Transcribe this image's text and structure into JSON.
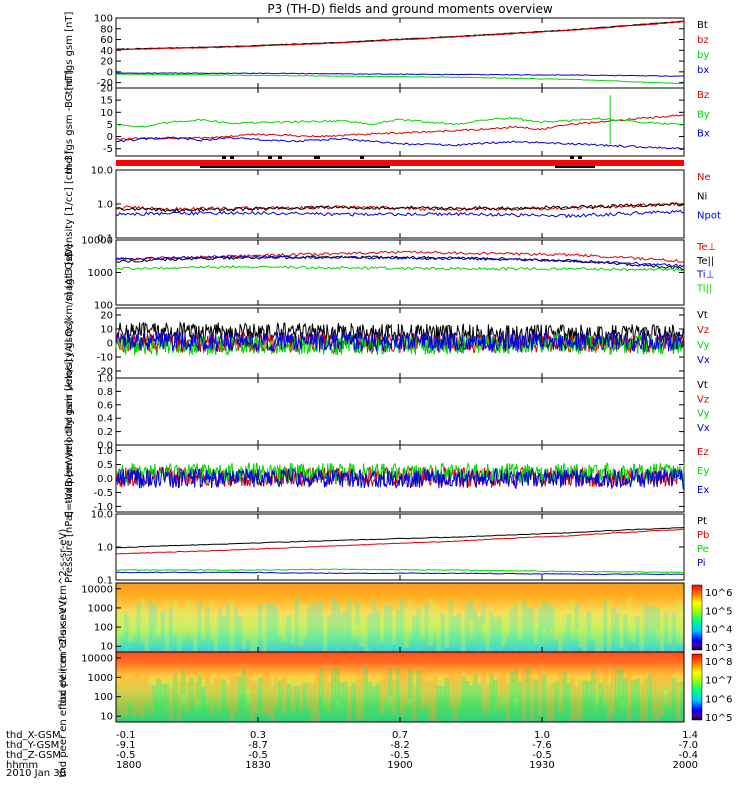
{
  "colors": {
    "black": "#000000",
    "red": "#e00000",
    "green": "#00d800",
    "blue": "#0000e0"
  },
  "chart_data": {
    "type": "line",
    "title": "P3 (TH-D) fields and ground moments overview",
    "date_label": "2010 Jan 30",
    "x_range": [
      "1800",
      "2000"
    ],
    "panels": [
      {
        "id": "fgs",
        "ylabel": "thd fgs gsm [nT]",
        "scale": "linear",
        "ylim": [
          -30,
          100
        ],
        "tick_labels": [
          "100",
          "80",
          "60",
          "40",
          "20",
          "0",
          "-20"
        ],
        "tick_values": [
          100,
          80,
          60,
          40,
          20,
          0,
          -20
        ],
        "series": [
          {
            "name": "Bt",
            "color": "black",
            "pts": [
              [
                0,
                42
              ],
              [
                0.2,
                47
              ],
              [
                0.4,
                55
              ],
              [
                0.6,
                66
              ],
              [
                0.8,
                78
              ],
              [
                1,
                94
              ]
            ]
          },
          {
            "name": "bz",
            "color": "red",
            "pts": [
              [
                0,
                41
              ],
              [
                0.2,
                46
              ],
              [
                0.4,
                54
              ],
              [
                0.6,
                65
              ],
              [
                0.8,
                77
              ],
              [
                1,
                93
              ]
            ]
          },
          {
            "name": "by",
            "color": "green",
            "pts": [
              [
                0,
                -4
              ],
              [
                0.3,
                -7
              ],
              [
                0.6,
                -10
              ],
              [
                0.8,
                -14
              ],
              [
                1,
                -22
              ]
            ]
          },
          {
            "name": "bx",
            "color": "blue",
            "pts": [
              [
                0,
                -2
              ],
              [
                0.3,
                -3
              ],
              [
                0.6,
                -5
              ],
              [
                0.8,
                -6
              ],
              [
                1,
                -8
              ]
            ]
          }
        ]
      },
      {
        "id": "fgs_dsl",
        "ylabel": "thd fgs gsm -BG [nT]",
        "scale": "linear",
        "ylim": [
          -8,
          20
        ],
        "tick_labels": [
          "20",
          "15",
          "10",
          "5",
          "0",
          "-5"
        ],
        "tick_values": [
          20,
          15,
          10,
          5,
          0,
          -5
        ],
        "series": [
          {
            "name": "Bz",
            "color": "red",
            "pts": [
              [
                0,
                -1
              ],
              [
                0.15,
                -0.5
              ],
              [
                0.2,
                0
              ],
              [
                0.25,
                1
              ],
              [
                0.35,
                0
              ],
              [
                0.45,
                1
              ],
              [
                0.55,
                2
              ],
              [
                0.65,
                3
              ],
              [
                0.7,
                4
              ],
              [
                0.75,
                3
              ],
              [
                0.8,
                5
              ],
              [
                0.85,
                6
              ],
              [
                0.9,
                7
              ],
              [
                0.95,
                8
              ],
              [
                1,
                9
              ]
            ]
          },
          {
            "name": "By",
            "color": "green",
            "pts": [
              [
                0,
                5
              ],
              [
                0.05,
                4
              ],
              [
                0.1,
                6
              ],
              [
                0.15,
                7
              ],
              [
                0.2,
                5.5
              ],
              [
                0.3,
                6
              ],
              [
                0.4,
                6.5
              ],
              [
                0.45,
                5
              ],
              [
                0.5,
                7
              ],
              [
                0.55,
                6
              ],
              [
                0.6,
                5
              ],
              [
                0.65,
                7
              ],
              [
                0.7,
                7.5
              ],
              [
                0.75,
                6
              ],
              [
                0.8,
                6.5
              ],
              [
                0.85,
                7.5
              ],
              [
                0.9,
                6.5
              ],
              [
                0.95,
                5.5
              ],
              [
                1,
                5
              ]
            ]
          },
          {
            "name": "Bx",
            "color": "blue",
            "pts": [
              [
                0,
                -2
              ],
              [
                0.05,
                -1
              ],
              [
                0.1,
                -0.5
              ],
              [
                0.15,
                -1.5
              ],
              [
                0.2,
                -0.5
              ],
              [
                0.3,
                -2
              ],
              [
                0.4,
                -1
              ],
              [
                0.5,
                -3
              ],
              [
                0.6,
                -3.5
              ],
              [
                0.7,
                -2
              ],
              [
                0.8,
                -3
              ],
              [
                0.9,
                -4
              ],
              [
                1,
                -5
              ]
            ]
          }
        ]
      },
      {
        "id": "density",
        "ylabel": "Density [1/cc] [cm-3]",
        "scale": "log",
        "ylim": [
          0.1,
          10
        ],
        "tick_labels": [
          "10.0",
          "1.0",
          "0.1"
        ],
        "tick_values": [
          10,
          1,
          0.1
        ],
        "series": [
          {
            "name": "Ne",
            "color": "red",
            "pts": [
              [
                0,
                0.8
              ],
              [
                0.1,
                0.7
              ],
              [
                0.2,
                0.75
              ],
              [
                0.4,
                0.8
              ],
              [
                0.6,
                0.7
              ],
              [
                0.8,
                0.75
              ],
              [
                1,
                1.0
              ]
            ]
          },
          {
            "name": "Ni",
            "color": "black",
            "pts": [
              [
                0,
                0.75
              ],
              [
                0.1,
                0.65
              ],
              [
                0.2,
                0.7
              ],
              [
                0.4,
                0.8
              ],
              [
                0.6,
                0.75
              ],
              [
                0.8,
                0.8
              ],
              [
                1,
                1.0
              ]
            ]
          },
          {
            "name": "Npot",
            "color": "blue",
            "pts": [
              [
                0,
                0.5
              ],
              [
                0.2,
                0.55
              ],
              [
                0.4,
                0.5
              ],
              [
                0.6,
                0.5
              ],
              [
                0.8,
                0.45
              ],
              [
                1,
                0.6
              ]
            ]
          }
        ]
      },
      {
        "id": "temp",
        "ylabel": "magt3 [eV]",
        "scale": "log",
        "ylim": [
          100,
          10000
        ],
        "tick_labels": [
          "10000",
          "1000",
          "100"
        ],
        "tick_values": [
          10000,
          1000,
          100
        ],
        "series": [
          {
            "name": "Te⊥",
            "color": "red",
            "pts": [
              [
                0,
                2500
              ],
              [
                0.2,
                3200
              ],
              [
                0.4,
                3800
              ],
              [
                0.5,
                4200
              ],
              [
                0.6,
                4000
              ],
              [
                0.8,
                3500
              ],
              [
                1,
                2200
              ]
            ]
          },
          {
            "name": "Te||",
            "color": "black",
            "pts": [
              [
                0,
                2200
              ],
              [
                0.2,
                2800
              ],
              [
                0.4,
                3000
              ],
              [
                0.6,
                2800
              ],
              [
                0.8,
                2300
              ],
              [
                1,
                1300
              ]
            ]
          },
          {
            "name": "Ti⊥",
            "color": "blue",
            "pts": [
              [
                0,
                2600
              ],
              [
                0.2,
                3000
              ],
              [
                0.4,
                2900
              ],
              [
                0.6,
                2700
              ],
              [
                0.8,
                2300
              ],
              [
                1,
                1600
              ]
            ]
          },
          {
            "name": "Ti||",
            "color": "green",
            "pts": [
              [
                0,
                1300
              ],
              [
                0.2,
                1500
              ],
              [
                0.4,
                1400
              ],
              [
                0.6,
                1300
              ],
              [
                0.8,
                1300
              ],
              [
                1,
                1200
              ]
            ]
          }
        ]
      },
      {
        "id": "vel_peir",
        "ylabel": "thd peir velocity gsm [km/s] (All Qs)",
        "scale": "linear",
        "ylim": [
          -25,
          25
        ],
        "tick_labels": [
          "20",
          "10",
          "0",
          "-10",
          "-20"
        ],
        "tick_values": [
          20,
          10,
          0,
          -10,
          -20
        ],
        "series": [
          {
            "name": "Vt",
            "color": "black",
            "pts": [
              [
                0,
                8
              ],
              [
                0.5,
                7
              ],
              [
                1,
                6
              ]
            ]
          },
          {
            "name": "Vz",
            "color": "red",
            "pts": [
              [
                0,
                0
              ],
              [
                1,
                0
              ]
            ]
          },
          {
            "name": "Vy",
            "color": "green",
            "pts": [
              [
                0,
                -2
              ],
              [
                1,
                -1
              ]
            ]
          },
          {
            "name": "Vx",
            "color": "blue",
            "pts": [
              [
                0,
                1
              ],
              [
                1,
                1
              ]
            ]
          }
        ]
      },
      {
        "id": "vel_peer",
        "ylabel": "thd peer velocity gsm [km/s] (All Qs)",
        "scale": "linear",
        "ylim": [
          0,
          1
        ],
        "tick_labels": [
          "1.0",
          "0.8",
          "0.6",
          "0.4",
          "0.2",
          "0.0"
        ],
        "tick_values": [
          1,
          0.8,
          0.6,
          0.4,
          0.2,
          0
        ],
        "series": [
          {
            "name": "Vt",
            "color": "black",
            "pts": []
          },
          {
            "name": "Vz",
            "color": "red",
            "pts": []
          },
          {
            "name": "Vy",
            "color": "green",
            "pts": []
          },
          {
            "name": "Vx",
            "color": "blue",
            "pts": []
          }
        ]
      },
      {
        "id": "efield",
        "ylabel": "E=-VxB [mV/m]",
        "scale": "linear",
        "ylim": [
          -1.2,
          1.2
        ],
        "tick_labels": [
          "1.0",
          "0.5",
          "0.0",
          "-0.5",
          "-1.0"
        ],
        "tick_values": [
          1,
          0.5,
          0,
          -0.5,
          -1
        ],
        "series": [
          {
            "name": "Ez",
            "color": "red",
            "pts": [
              [
                0,
                0.05
              ],
              [
                1,
                0.05
              ]
            ]
          },
          {
            "name": "Ey",
            "color": "green",
            "pts": [
              [
                0,
                0.2
              ],
              [
                1,
                0.2
              ]
            ]
          },
          {
            "name": "Ex",
            "color": "blue",
            "pts": [
              [
                0,
                0
              ],
              [
                1,
                0
              ]
            ]
          }
        ]
      },
      {
        "id": "pressure",
        "ylabel": "Pressure [nPa]",
        "scale": "log",
        "ylim": [
          0.1,
          10
        ],
        "tick_labels": [
          "10.0",
          "1.0",
          "0.1"
        ],
        "tick_values": [
          10,
          1,
          0.1
        ],
        "series": [
          {
            "name": "Pt",
            "color": "black",
            "pts": [
              [
                0,
                0.95
              ],
              [
                0.2,
                1.25
              ],
              [
                0.4,
                1.6
              ],
              [
                0.6,
                2.0
              ],
              [
                0.8,
                2.7
              ],
              [
                1,
                3.9
              ]
            ]
          },
          {
            "name": "Pb",
            "color": "red",
            "pts": [
              [
                0,
                0.62
              ],
              [
                0.2,
                0.8
              ],
              [
                0.4,
                1.1
              ],
              [
                0.6,
                1.5
              ],
              [
                0.8,
                2.2
              ],
              [
                1,
                3.4
              ]
            ]
          },
          {
            "name": "Pe",
            "color": "green",
            "pts": [
              [
                0,
                0.2
              ],
              [
                0.2,
                0.2
              ],
              [
                0.4,
                0.21
              ],
              [
                0.6,
                0.2
              ],
              [
                0.8,
                0.18
              ],
              [
                1,
                0.17
              ]
            ]
          },
          {
            "name": "Pi",
            "color": "blue",
            "pts": [
              [
                0,
                0.17
              ],
              [
                0.2,
                0.17
              ],
              [
                0.4,
                0.16
              ],
              [
                0.6,
                0.16
              ],
              [
                0.8,
                0.15
              ],
              [
                1,
                0.15
              ]
            ]
          }
        ]
      }
    ],
    "spectrograms": [
      {
        "id": "peir_spec",
        "ylabel": "thd peir en eflux eV (cm^2-s-sr-eV)",
        "scale": "log",
        "tick_labels": [
          "10000",
          "1000",
          "100",
          "10"
        ],
        "tick_values": [
          10000,
          1000,
          100,
          10
        ],
        "colorbar_labels": [
          "10^6",
          "10^5",
          "10^4",
          "10^3"
        ],
        "colorbar_values": [
          6,
          5,
          4,
          3
        ]
      },
      {
        "id": "peer_spec",
        "ylabel": "thd peer en eflux eV (cm^2-s-sr-eV)",
        "scale": "log",
        "tick_labels": [
          "10000",
          "1000",
          "100",
          "10"
        ],
        "tick_values": [
          10000,
          1000,
          100,
          10
        ],
        "colorbar_labels": [
          "10^8",
          "10^7",
          "10^6",
          "10^5"
        ],
        "colorbar_values": [
          8,
          7,
          6,
          5
        ]
      }
    ],
    "ephemeris": {
      "rows": [
        {
          "label": "thd_X-GSM",
          "values": [
            "-0.1",
            "0.3",
            "0.7",
            "1.0",
            "1.4"
          ]
        },
        {
          "label": "thd_Y-GSM",
          "values": [
            "-9.1",
            "-8.7",
            "-8.2",
            "-7.6",
            "-7.0"
          ]
        },
        {
          "label": "thd_Z-GSM",
          "values": [
            "-0.5",
            "-0.5",
            "-0.5",
            "-0.5",
            "-0.4"
          ]
        },
        {
          "label": "hhmm",
          "values": [
            "1800",
            "1830",
            "1900",
            "1930",
            "2000"
          ]
        }
      ]
    }
  }
}
